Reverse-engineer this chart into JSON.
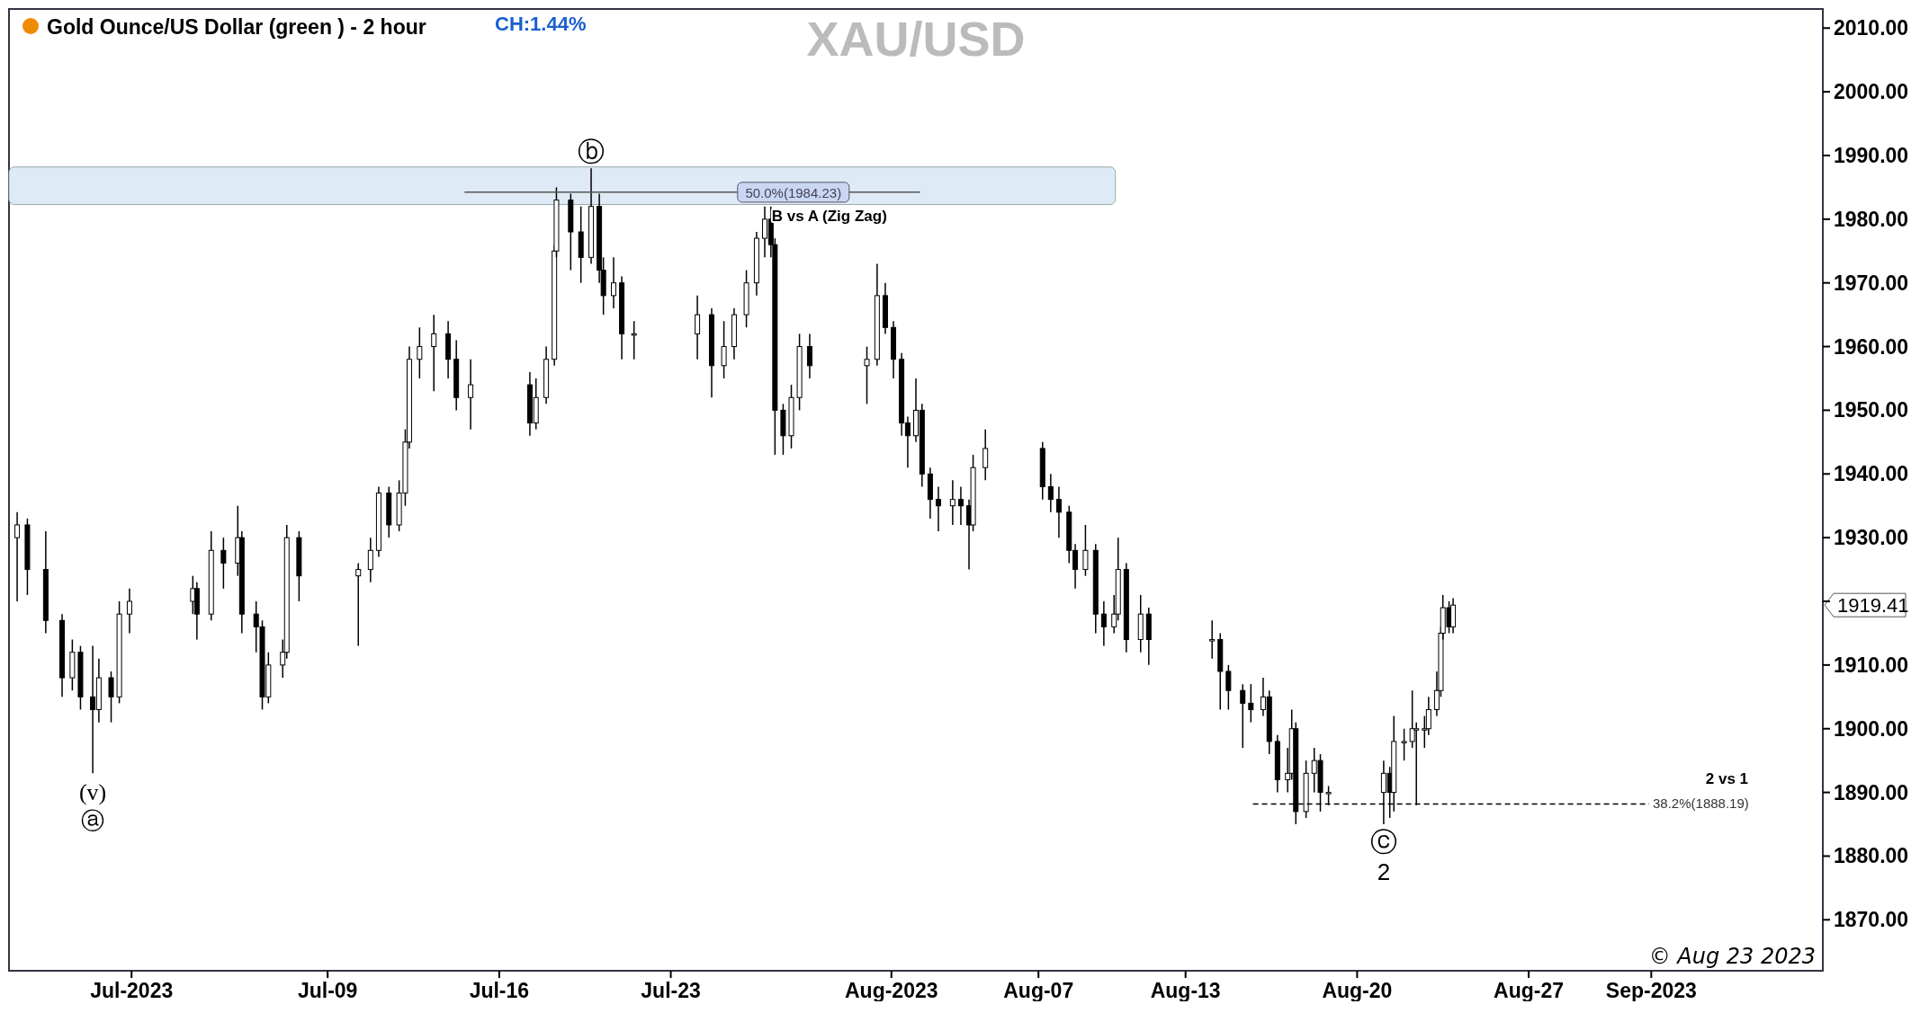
{
  "chart_data": {
    "type": "candlestick",
    "title": "XAU/USD",
    "subtitle": "Gold Ounce/US Dollar (green ) - 2 hour",
    "xlim": [
      "2023-06-26T00:00",
      "2023-09-08T00:00"
    ],
    "ylim": [
      1862,
      2013
    ],
    "xticks": [
      {
        "value": "2023-07-01",
        "label": "Jul-2023"
      },
      {
        "value": "2023-07-09",
        "label": "Jul-09"
      },
      {
        "value": "2023-07-16",
        "label": "Jul-16"
      },
      {
        "value": "2023-07-23",
        "label": "Jul-23"
      },
      {
        "value": "2023-08-01",
        "label": "Aug-2023"
      },
      {
        "value": "2023-08-07",
        "label": "Aug-07"
      },
      {
        "value": "2023-08-13",
        "label": "Aug-13"
      },
      {
        "value": "2023-08-20",
        "label": "Aug-20"
      },
      {
        "value": "2023-08-27",
        "label": "Aug-27"
      },
      {
        "value": "2023-09-01",
        "label": "Sep-2023"
      }
    ],
    "yticks": [
      {
        "value": 1870,
        "label": "1870.00"
      },
      {
        "value": 1880,
        "label": "1880.00"
      },
      {
        "value": 1890,
        "label": "1890.00"
      },
      {
        "value": 1900,
        "label": "1900.00"
      },
      {
        "value": 1910,
        "label": "1910.00"
      },
      {
        "value": 1920,
        "label": null
      },
      {
        "value": 1930,
        "label": "1930.00"
      },
      {
        "value": 1940,
        "label": "1940.00"
      },
      {
        "value": 1950,
        "label": "1950.00"
      },
      {
        "value": 1960,
        "label": "1960.00"
      },
      {
        "value": 1970,
        "label": "1970.00"
      },
      {
        "value": 1980,
        "label": "1980.00"
      },
      {
        "value": 1990,
        "label": "1990.00"
      },
      {
        "value": 2000,
        "label": "2000.00"
      },
      {
        "value": 2010,
        "label": "2010.00"
      }
    ],
    "bands": [
      {
        "axis": "y",
        "from": 1982.3,
        "to": 1988.2,
        "color": "#deeaf6"
      }
    ],
    "series": [
      {
        "color": "#000000",
        "x": [
          "2023-06-26T08:00",
          "2023-06-26T18:00",
          "2023-06-27T12:00",
          "2023-06-28T04:00",
          "2023-06-28T14:00",
          "2023-06-28T22:00",
          "2023-06-29T10:00",
          "2023-06-29T16:00",
          "2023-06-30T04:00",
          "2023-06-30T12:00",
          "2023-06-30T22:00",
          "2023-07-03T12:00",
          "2023-07-03T16:00",
          "2023-07-04T06:00",
          "2023-07-04T18:00",
          "2023-07-05T08:00",
          "2023-07-05T12:00",
          "2023-07-06T02:00",
          "2023-07-06T08:00",
          "2023-07-06T14:00",
          "2023-07-07T04:00",
          "2023-07-07T08:00",
          "2023-07-07T20:00",
          "2023-07-10T06:00",
          "2023-07-10T18:00",
          "2023-07-11T02:00",
          "2023-07-11T12:00",
          "2023-07-11T22:00",
          "2023-07-12T04:00",
          "2023-07-12T08:00",
          "2023-07-12T18:00",
          "2023-07-13T08:00",
          "2023-07-13T22:00",
          "2023-07-14T06:00",
          "2023-07-14T20:00",
          "2023-07-17T06:00",
          "2023-07-17T12:00",
          "2023-07-17T22:00",
          "2023-07-18T06:00",
          "2023-07-18T08:00",
          "2023-07-18T22:00",
          "2023-07-19T08:00",
          "2023-07-19T18:00",
          "2023-07-20T02:00",
          "2023-07-20T06:00",
          "2023-07-20T16:00",
          "2023-07-21T00:00",
          "2023-07-21T12:00",
          "2023-07-24T02:00",
          "2023-07-24T16:00",
          "2023-07-25T04:00",
          "2023-07-25T14:00",
          "2023-07-26T02:00",
          "2023-07-26T12:00",
          "2023-07-26T20:00",
          "2023-07-27T02:00",
          "2023-07-27T06:00",
          "2023-07-27T14:00",
          "2023-07-27T22:00",
          "2023-07-28T06:00",
          "2023-07-28T16:00",
          "2023-07-31T00:00",
          "2023-07-31T10:00",
          "2023-07-31T18:00",
          "2023-08-01T02:00",
          "2023-08-01T10:00",
          "2023-08-01T16:00",
          "2023-08-02T00:00",
          "2023-08-02T06:00",
          "2023-08-02T14:00",
          "2023-08-02T22:00",
          "2023-08-03T12:00",
          "2023-08-03T20:00",
          "2023-08-04T04:00",
          "2023-08-04T08:00",
          "2023-08-04T20:00",
          "2023-08-07T04:00",
          "2023-08-07T12:00",
          "2023-08-07T20:00",
          "2023-08-08T06:00",
          "2023-08-08T12:00",
          "2023-08-08T22:00",
          "2023-08-09T08:00",
          "2023-08-09T16:00",
          "2023-08-10T02:00",
          "2023-08-10T06:00",
          "2023-08-10T14:00",
          "2023-08-11T04:00",
          "2023-08-11T12:00",
          "2023-08-14T02:00",
          "2023-08-14T10:00",
          "2023-08-14T18:00",
          "2023-08-15T08:00",
          "2023-08-15T16:00",
          "2023-08-16T04:00",
          "2023-08-16T10:00",
          "2023-08-16T18:00",
          "2023-08-17T04:00",
          "2023-08-17T08:00",
          "2023-08-17T12:00",
          "2023-08-17T22:00",
          "2023-08-18T06:00",
          "2023-08-18T12:00",
          "2023-08-18T20:00",
          "2023-08-21T02:00",
          "2023-08-21T08:00",
          "2023-08-21T12:00",
          "2023-08-21T22:00",
          "2023-08-22T06:00",
          "2023-08-22T10:00",
          "2023-08-22T18:00",
          "2023-08-22T22:00",
          "2023-08-23T06:00",
          "2023-08-23T10:00",
          "2023-08-23T12:00",
          "2023-08-23T18:00",
          "2023-08-23T22:00"
        ],
        "ohlc": [
          [
            1930,
            1934,
            1920,
            1932
          ],
          [
            1932,
            1933,
            1921,
            1925
          ],
          [
            1925,
            1931,
            1915,
            1917
          ],
          [
            1917,
            1918,
            1905,
            1908
          ],
          [
            1908,
            1914,
            1906,
            1912
          ],
          [
            1912,
            1913,
            1903,
            1905
          ],
          [
            1905,
            1913,
            1893,
            1903
          ],
          [
            1903,
            1911,
            1901,
            1908
          ],
          [
            1908,
            1909,
            1901,
            1905
          ],
          [
            1905,
            1920,
            1904,
            1918
          ],
          [
            1918,
            1922,
            1915,
            1920
          ],
          [
            1920,
            1924,
            1918,
            1922
          ],
          [
            1922,
            1923,
            1914,
            1918
          ],
          [
            1918,
            1931,
            1917,
            1928
          ],
          [
            1928,
            1930,
            1922,
            1926
          ],
          [
            1926,
            1935,
            1924,
            1930
          ],
          [
            1930,
            1931,
            1915,
            1918
          ],
          [
            1918,
            1920,
            1912,
            1916
          ],
          [
            1916,
            1917,
            1903,
            1905
          ],
          [
            1905,
            1912,
            1904,
            1910
          ],
          [
            1910,
            1914,
            1908,
            1912
          ],
          [
            1912,
            1932,
            1911,
            1930
          ],
          [
            1930,
            1931,
            1920,
            1924
          ],
          [
            1924,
            1926,
            1913,
            1925
          ],
          [
            1925,
            1930,
            1923,
            1928
          ],
          [
            1928,
            1938,
            1927,
            1937
          ],
          [
            1937,
            1938,
            1930,
            1932
          ],
          [
            1932,
            1939,
            1931,
            1937
          ],
          [
            1937,
            1947,
            1935,
            1945
          ],
          [
            1945,
            1960,
            1944,
            1958
          ],
          [
            1958,
            1963,
            1955,
            1960
          ],
          [
            1960,
            1965,
            1953,
            1962
          ],
          [
            1962,
            1964,
            1955,
            1958
          ],
          [
            1958,
            1961,
            1950,
            1952
          ],
          [
            1952,
            1958,
            1947,
            1954
          ],
          [
            1954,
            1956,
            1946,
            1948
          ],
          [
            1948,
            1955,
            1947,
            1952
          ],
          [
            1952,
            1960,
            1951,
            1958
          ],
          [
            1958,
            1976,
            1957,
            1975
          ],
          [
            1975,
            1985,
            1974,
            1983
          ],
          [
            1983,
            1984,
            1972,
            1978
          ],
          [
            1978,
            1982,
            1970,
            1974
          ],
          [
            1974,
            1988,
            1973,
            1982
          ],
          [
            1982,
            1984,
            1970,
            1972
          ],
          [
            1972,
            1974,
            1965,
            1968
          ],
          [
            1968,
            1974,
            1966,
            1970
          ],
          [
            1970,
            1971,
            1958,
            1962
          ],
          [
            1962,
            1964,
            1958,
            1962
          ],
          [
            1962,
            1968,
            1958,
            1965
          ],
          [
            1965,
            1966,
            1952,
            1957
          ],
          [
            1957,
            1964,
            1955,
            1960
          ],
          [
            1960,
            1966,
            1958,
            1965
          ],
          [
            1965,
            1972,
            1963,
            1970
          ],
          [
            1970,
            1978,
            1968,
            1977
          ],
          [
            1977,
            1982,
            1974,
            1980
          ],
          [
            1980,
            1982,
            1974,
            1976
          ],
          [
            1976,
            1977,
            1943,
            1950
          ],
          [
            1950,
            1951,
            1943,
            1946
          ],
          [
            1946,
            1954,
            1944,
            1952
          ],
          [
            1952,
            1962,
            1950,
            1960
          ],
          [
            1960,
            1962,
            1955,
            1957
          ],
          [
            1957,
            1960,
            1951,
            1958
          ],
          [
            1958,
            1973,
            1957,
            1968
          ],
          [
            1968,
            1970,
            1962,
            1963
          ],
          [
            1963,
            1964,
            1955,
            1958
          ],
          [
            1958,
            1959,
            1946,
            1948
          ],
          [
            1948,
            1949,
            1941,
            1946
          ],
          [
            1946,
            1955,
            1945,
            1950
          ],
          [
            1950,
            1951,
            1938,
            1940
          ],
          [
            1940,
            1941,
            1933,
            1936
          ],
          [
            1936,
            1938,
            1931,
            1935
          ],
          [
            1935,
            1939,
            1932,
            1936
          ],
          [
            1936,
            1938,
            1932,
            1935
          ],
          [
            1935,
            1936,
            1925,
            1932
          ],
          [
            1932,
            1943,
            1931,
            1941
          ],
          [
            1941,
            1947,
            1939,
            1944
          ],
          [
            1944,
            1945,
            1936,
            1938
          ],
          [
            1938,
            1940,
            1934,
            1936
          ],
          [
            1936,
            1938,
            1930,
            1934
          ],
          [
            1934,
            1935,
            1926,
            1928
          ],
          [
            1928,
            1929,
            1922,
            1925
          ],
          [
            1925,
            1932,
            1924,
            1928
          ],
          [
            1928,
            1929,
            1915,
            1918
          ],
          [
            1918,
            1920,
            1913,
            1916
          ],
          [
            1916,
            1921,
            1915,
            1918
          ],
          [
            1918,
            1930,
            1917,
            1925
          ],
          [
            1925,
            1926,
            1912,
            1914
          ],
          [
            1914,
            1921,
            1912,
            1918
          ],
          [
            1918,
            1919,
            1910,
            1914
          ],
          [
            1914,
            1917,
            1911,
            1914
          ],
          [
            1914,
            1915,
            1903,
            1909
          ],
          [
            1909,
            1910,
            1903,
            1906
          ],
          [
            1906,
            1907,
            1897,
            1904
          ],
          [
            1904,
            1907,
            1901,
            1903
          ],
          [
            1903,
            1908,
            1902,
            1905
          ],
          [
            1905,
            1906,
            1896,
            1898
          ],
          [
            1898,
            1899,
            1890,
            1892
          ],
          [
            1892,
            1897,
            1890,
            1893
          ],
          [
            1893,
            1903,
            1892,
            1900
          ],
          [
            1900,
            1901,
            1885,
            1887
          ],
          [
            1887,
            1895,
            1886,
            1893
          ],
          [
            1893,
            1897,
            1890,
            1895
          ],
          [
            1895,
            1896,
            1887,
            1890
          ],
          [
            1890,
            1891,
            1888,
            1890
          ],
          [
            1890,
            1895,
            1885,
            1893
          ],
          [
            1893,
            1894,
            1886,
            1890
          ],
          [
            1890,
            1902,
            1887,
            1898
          ],
          [
            1898,
            1900,
            1895,
            1898
          ],
          [
            1898,
            1906,
            1897,
            1900
          ],
          [
            1900,
            1901,
            1888,
            1900
          ],
          [
            1900,
            1902,
            1897,
            1900
          ],
          [
            1900,
            1905,
            1899,
            1903
          ],
          [
            1903,
            1909,
            1902,
            1906
          ],
          [
            1906,
            1916,
            1905,
            1915
          ],
          [
            1915,
            1921,
            1914,
            1919
          ],
          [
            1919,
            1920,
            1915,
            1916
          ],
          [
            1916,
            1920.5,
            1915,
            1919.41
          ]
        ]
      },
      {
        "type": "line",
        "color": "#555555",
        "line_style": "solid",
        "x": [
          "2023-07-14T14:00",
          "2023-08-02T04:00"
        ],
        "values": [
          1984.23,
          1984.23
        ]
      },
      {
        "type": "line",
        "color": "#000000",
        "line_style": "dashed",
        "x": [
          "2023-08-15T18:00",
          "2023-08-31T22:00"
        ],
        "values": [
          1888.19,
          1888.19
        ]
      }
    ],
    "annotations": [
      "CH:1.44%",
      "B vs A (Zig Zag)",
      "2 vs 1",
      "1919.41",
      "© Aug 23 2023",
      {
        "text": "50.0%(1984.23)",
        "x": "2023-07-28T00:00",
        "y": 1984.23
      },
      {
        "text": "38.2%(1888.19)",
        "x": "2023-08-31T22:00",
        "y": 1888.19
      },
      {
        "text": "ⓑ",
        "x": "2023-07-19T18:00",
        "y": 1988
      },
      {
        "text": "(v)",
        "x": "2023-06-29T10:00",
        "y": 1893
      },
      {
        "text": "ⓐ",
        "x": "2023-06-29T10:00",
        "y": 1893
      },
      {
        "text": "ⓒ",
        "x": "2023-08-21T02:00",
        "y": 1885
      },
      {
        "text": "2",
        "x": "2023-08-21T02:00",
        "y": 1885
      }
    ]
  }
}
